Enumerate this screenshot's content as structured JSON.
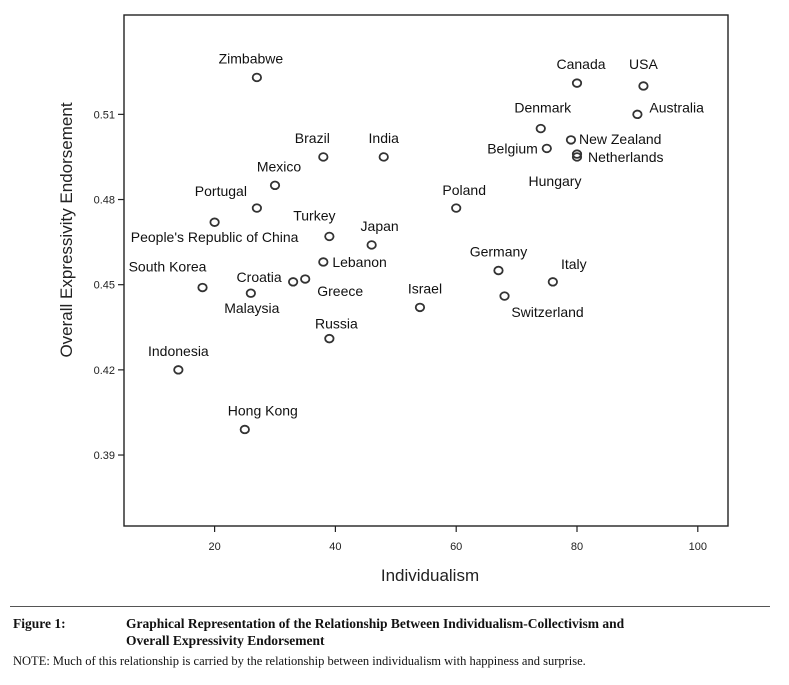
{
  "chart_data": {
    "type": "scatter",
    "xlabel": "Individualism",
    "ylabel": "Overall Expressivity Endorsement",
    "xlim": [
      5,
      105
    ],
    "ylim": [
      0.365,
      0.545
    ],
    "xticks": [
      20,
      40,
      60,
      80,
      100
    ],
    "yticks": [
      0.39,
      0.42,
      0.45,
      0.48,
      0.51
    ],
    "grid": false,
    "points": [
      {
        "label": "Zimbabwe",
        "x": 27,
        "y": 0.523
      },
      {
        "label": "Canada",
        "x": 80,
        "y": 0.521
      },
      {
        "label": "USA",
        "x": 91,
        "y": 0.52
      },
      {
        "label": "Australia",
        "x": 90,
        "y": 0.51
      },
      {
        "label": "Denmark",
        "x": 74,
        "y": 0.505
      },
      {
        "label": "New Zealand",
        "x": 79,
        "y": 0.501
      },
      {
        "label": "Belgium",
        "x": 75,
        "y": 0.498
      },
      {
        "label": "Netherlands",
        "x": 80,
        "y": 0.496
      },
      {
        "label": "Hungary",
        "x": 80,
        "y": 0.495
      },
      {
        "label": "Brazil",
        "x": 38,
        "y": 0.495
      },
      {
        "label": "India",
        "x": 48,
        "y": 0.495
      },
      {
        "label": "Mexico",
        "x": 30,
        "y": 0.485
      },
      {
        "label": "Portugal",
        "x": 27,
        "y": 0.477
      },
      {
        "label": "Poland",
        "x": 60,
        "y": 0.477
      },
      {
        "label": "People's Republic of China",
        "x": 20,
        "y": 0.472
      },
      {
        "label": "Turkey",
        "x": 39,
        "y": 0.467
      },
      {
        "label": "Japan",
        "x": 46,
        "y": 0.464
      },
      {
        "label": "Lebanon",
        "x": 38,
        "y": 0.458
      },
      {
        "label": "Germany",
        "x": 67,
        "y": 0.455
      },
      {
        "label": "Italy",
        "x": 76,
        "y": 0.451
      },
      {
        "label": "South Korea",
        "x": 18,
        "y": 0.449
      },
      {
        "label": "Croatia",
        "x": 33,
        "y": 0.451
      },
      {
        "label": "Greece",
        "x": 35,
        "y": 0.452
      },
      {
        "label": "Malaysia",
        "x": 26,
        "y": 0.447
      },
      {
        "label": "Switzerland",
        "x": 68,
        "y": 0.446
      },
      {
        "label": "Israel",
        "x": 54,
        "y": 0.442
      },
      {
        "label": "Russia",
        "x": 39,
        "y": 0.431
      },
      {
        "label": "Indonesia",
        "x": 14,
        "y": 0.42
      },
      {
        "label": "Hong Kong",
        "x": 25,
        "y": 0.399
      }
    ]
  },
  "caption": {
    "number": "Figure 1:",
    "title_line1": "Graphical Representation of the Relationship Between Individualism-Collectivism and",
    "title_line2": "Overall Expressivity Endorsement",
    "note": "NOTE: Much of this relationship is carried by the relationship between individualism with happiness and surprise."
  }
}
